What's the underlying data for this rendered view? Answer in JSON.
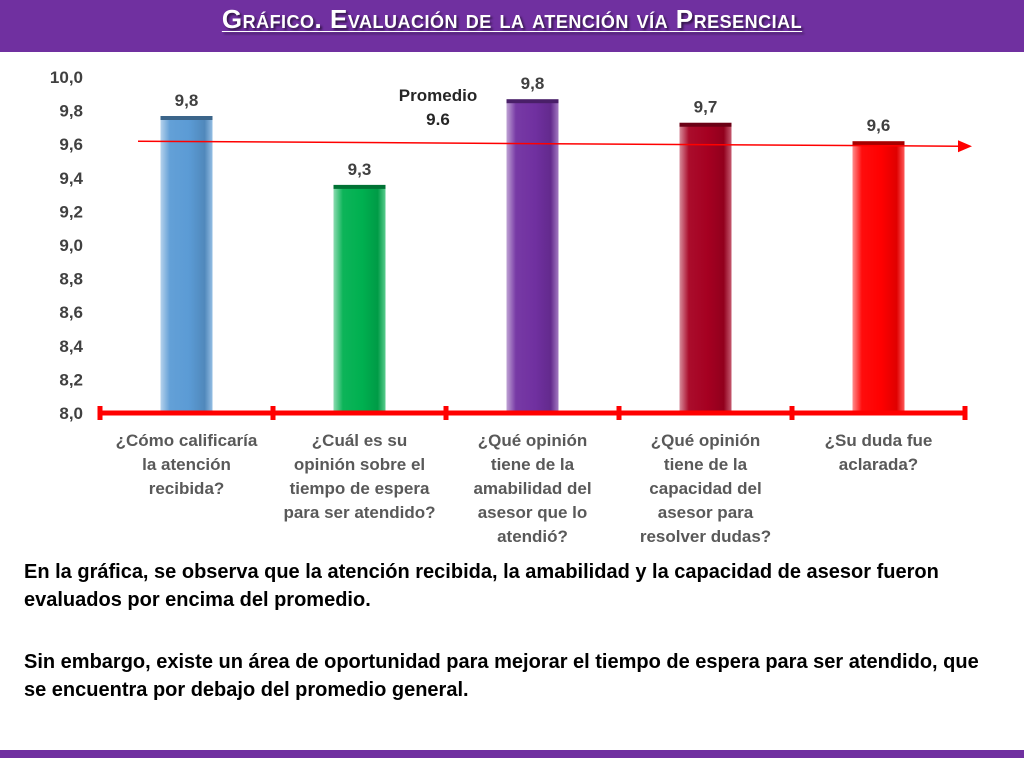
{
  "title": "Gráfico. Evaluación de la atención vía Presencial",
  "chart_data": {
    "type": "bar",
    "title": "",
    "xlabel": "",
    "ylabel": "",
    "ylim": [
      8.0,
      10.0
    ],
    "yticks": [
      "8,0",
      "8,2",
      "8,4",
      "8,6",
      "8,8",
      "9,0",
      "9,2",
      "9,4",
      "9,6",
      "9,8",
      "10,0"
    ],
    "categories": [
      [
        "¿Cómo calificaría",
        "la atención",
        "recibida?"
      ],
      [
        "¿Cuál es su",
        "opinión sobre el",
        "tiempo de espera",
        "para ser atendido?"
      ],
      [
        "¿Qué opinión",
        "tiene de la",
        "amabilidad del",
        "asesor que lo",
        "atendió?"
      ],
      [
        "¿Qué opinión",
        "tiene de la",
        "capacidad del",
        "asesor para",
        "resolver dudas?"
      ],
      [
        "¿Su duda fue",
        "aclarada?"
      ]
    ],
    "values": [
      9.75,
      9.34,
      9.85,
      9.71,
      9.6
    ],
    "value_labels": [
      "9,8",
      "9,3",
      "9,8",
      "9,7",
      "9,6"
    ],
    "bar_colors": [
      "#5b9bd5",
      "#00b050",
      "#7030a0",
      "#a50021",
      "#ff0000"
    ],
    "axis_color": "#ff0000",
    "average": {
      "value": 9.6,
      "label_line1": "Promedio",
      "label_line2": "9.6",
      "color": "#ff0000"
    },
    "grid": false,
    "legend": "none"
  },
  "description": {
    "paragraph1": "En la gráfica, se observa que la atención recibida, la amabilidad y la capacidad de asesor fueron evaluados por encima del promedio.",
    "paragraph2": "Sin embargo, existe un área de oportunidad para mejorar el tiempo de espera para ser atendido, que se encuentra por debajo del promedio general."
  },
  "colors": {
    "accent": "#7030a0"
  }
}
